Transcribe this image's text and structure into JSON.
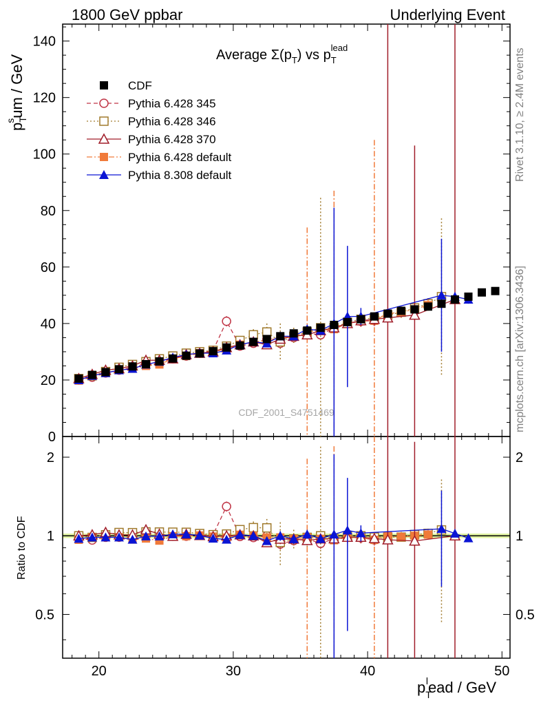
{
  "header": {
    "left": "1800 GeV ppbar",
    "right": "Underlying Event"
  },
  "side_texts": {
    "rivet": "Rivet 3.1.10, ≥ 2.4M events",
    "mcplots": "mcplots.cern.ch [arXiv:1306.3436]"
  },
  "watermark": "CDF_2001_S4751469",
  "chart_data": {
    "type": "scatter",
    "title": {
      "main": "Average Σ(p",
      "sub1": "T",
      "mid": ") vs p",
      "sub2": "T",
      "sup2": "lead"
    },
    "xlabel": {
      "p": "p",
      "sub": "T",
      "sup": "l",
      "rest": "ead / GeV"
    },
    "ylabel": {
      "p": "p",
      "sub": "T",
      "sup": "s",
      "rest": "um / GeV"
    },
    "ratio_ylabel": "Ratio to CDF",
    "xlim": [
      17.3,
      50.6
    ],
    "ylim": [
      0,
      146
    ],
    "ratio_ylim": [
      0.34,
      2.4
    ],
    "xticks": [
      20,
      30,
      40,
      50
    ],
    "xticklabels": [
      "20",
      "30",
      "40",
      "50"
    ],
    "yticks": [
      0,
      20,
      40,
      60,
      80,
      100,
      120,
      140
    ],
    "yticklabels": [
      "0",
      "20",
      "40",
      "60",
      "80",
      "100",
      "120",
      "140"
    ],
    "ratio_yticks": [
      0.5,
      1,
      2
    ],
    "ratio_yticklabels": [
      "0.5",
      "1",
      "2"
    ],
    "grid": false,
    "legend_position": "top-left",
    "series": [
      {
        "name": "CDF",
        "style": "data",
        "color": "#000000",
        "marker": "square-filled",
        "x": [
          18.5,
          19.5,
          20.5,
          21.5,
          22.5,
          23.5,
          24.5,
          25.5,
          26.5,
          27.5,
          28.5,
          29.5,
          30.5,
          31.5,
          32.5,
          33.5,
          34.5,
          35.5,
          36.5,
          37.5,
          38.5,
          39.5,
          40.5,
          41.5,
          42.5,
          43.5,
          44.5,
          45.5,
          46.5,
          47.5,
          48.5,
          49.5
        ],
        "y": [
          20.5,
          21.8,
          22.8,
          23.8,
          24.8,
          25.6,
          26.6,
          27.6,
          28.6,
          29.4,
          30.2,
          31.5,
          32.2,
          33.5,
          34.5,
          35.5,
          36.5,
          37.5,
          38.5,
          39.5,
          40.5,
          41.5,
          42.5,
          43.5,
          44.5,
          45.0,
          46.0,
          47.0,
          48.5,
          49.5,
          51.0,
          51.5
        ]
      },
      {
        "name": "Pythia 6.428 345",
        "style": "dashed",
        "color": "#c03546",
        "marker": "circle-open",
        "x": [
          18.5,
          19.5,
          20.5,
          21.5,
          22.5,
          23.5,
          24.5,
          25.5,
          26.5,
          27.5,
          28.5,
          29.5,
          30.5,
          31.5,
          32.5,
          33.5,
          34.5,
          35.5,
          36.5,
          37.5,
          38.5,
          39.5,
          40.5
        ],
        "y": [
          20.0,
          21.0,
          22.5,
          23.5,
          24.5,
          25.5,
          26.5,
          27.5,
          28.5,
          29.5,
          30.5,
          40.8,
          32.0,
          33.0,
          34.5,
          33.0,
          35.0,
          36.5,
          36.0,
          38.5,
          40.0,
          40.8,
          41.0
        ],
        "err": [
          0.6,
          0.6,
          0.6,
          0.6,
          0.6,
          0.6,
          0.6,
          0.6,
          0.6,
          0.6,
          0.6,
          1.8,
          0.8,
          0.8,
          1.0,
          1.5,
          1.5,
          1.5,
          1.8,
          1.5,
          2,
          2,
          2
        ]
      },
      {
        "name": "Pythia 6.428 346",
        "style": "dotted",
        "color": "#a07a2c",
        "marker": "square-open",
        "x": [
          18.5,
          19.5,
          20.5,
          21.5,
          22.5,
          23.5,
          24.5,
          25.5,
          26.5,
          27.5,
          28.5,
          29.5,
          30.5,
          31.5,
          32.5,
          33.5,
          34.5,
          35.5,
          36.5,
          37.5,
          38.5,
          39.5,
          40.5,
          41.5,
          42.5,
          43.5,
          44.5,
          45.5
        ],
        "y": [
          20.5,
          21.5,
          23.0,
          24.5,
          25.5,
          26.5,
          27.5,
          28.5,
          29.5,
          30.0,
          30.5,
          32.0,
          34.0,
          36.0,
          37.0,
          33.5,
          35.5,
          37.0,
          38.5,
          38.5,
          40.5,
          41.5,
          42.0,
          43.0,
          44.0,
          45.5,
          47.0,
          49.5
        ],
        "err": [
          0.6,
          0.6,
          0.6,
          0.6,
          0.6,
          0.6,
          0.6,
          0.6,
          0.6,
          0.6,
          0.6,
          0.8,
          1.0,
          2.0,
          3.0,
          6.5,
          3.0,
          3.0,
          46.0,
          2.0,
          2.0,
          2.0,
          2.0,
          2.0,
          2.0,
          2.0,
          2.0,
          27.7
        ]
      },
      {
        "name": "Pythia 6.428 370",
        "style": "solid",
        "color": "#a01c28",
        "marker": "triangle-open",
        "x": [
          18.5,
          19.5,
          20.5,
          21.5,
          22.5,
          23.5,
          24.5,
          25.5,
          26.5,
          27.5,
          28.5,
          29.5,
          30.5,
          31.5,
          32.5,
          33.5,
          34.5,
          35.5,
          36.5,
          37.5,
          38.5,
          39.5,
          40.5,
          41.5,
          43.5,
          46.5
        ],
        "y": [
          20.5,
          22.0,
          23.5,
          24.0,
          25.0,
          27.0,
          27.0,
          27.5,
          29.0,
          29.5,
          30.0,
          31.5,
          32.5,
          33.5,
          32.5,
          34.5,
          35.5,
          36.0,
          37.5,
          38.5,
          40.0,
          41.0,
          41.5,
          42.0,
          43.0,
          48.5
        ],
        "err": [
          0.6,
          0.6,
          0.6,
          0.6,
          0.6,
          0.6,
          0.6,
          0.6,
          0.6,
          0.6,
          0.6,
          0.8,
          0.8,
          1.0,
          1.0,
          1.5,
          1.5,
          1.5,
          1.5,
          2.0,
          2.0,
          2.0,
          2.0,
          140,
          60,
          140
        ]
      },
      {
        "name": "Pythia 6.428 default",
        "style": "dashdot",
        "color": "#f07a3a",
        "marker": "square-filled",
        "x": [
          18.5,
          19.5,
          20.5,
          21.5,
          22.5,
          23.5,
          24.5,
          25.5,
          26.5,
          27.5,
          28.5,
          29.5,
          30.5,
          31.5,
          32.5,
          33.5,
          34.5,
          35.5,
          36.5,
          37.5,
          38.5,
          39.5,
          40.5,
          41.5,
          42.5,
          43.5,
          44.5
        ],
        "y": [
          19.8,
          21.5,
          22.5,
          23.5,
          24.0,
          25.0,
          25.5,
          27.5,
          28.5,
          29.5,
          30.0,
          31.0,
          32.5,
          33.5,
          34.0,
          35.0,
          35.5,
          37.0,
          37.5,
          38.0,
          40.0,
          40.8,
          41.0,
          43.5,
          44.0,
          45.0,
          46.5
        ],
        "err": [
          0.6,
          0.6,
          0.6,
          0.6,
          0.6,
          0.6,
          0.6,
          0.6,
          0.6,
          0.6,
          0.6,
          0.8,
          0.8,
          1.0,
          1.0,
          1.5,
          1.5,
          37.0,
          1.5,
          49.0,
          2.0,
          2.0,
          64.0,
          2.0,
          2.0,
          2.0,
          2.0
        ]
      },
      {
        "name": "Pythia 8.308 default",
        "style": "solid",
        "color": "#0a14d4",
        "marker": "triangle-filled",
        "x": [
          18.5,
          19.5,
          20.5,
          21.5,
          22.5,
          23.5,
          24.5,
          25.5,
          26.5,
          27.5,
          28.5,
          29.5,
          30.5,
          31.5,
          32.5,
          33.5,
          34.5,
          35.5,
          36.5,
          37.5,
          38.5,
          39.5,
          45.5,
          46.5,
          47.5
        ],
        "y": [
          20.0,
          21.5,
          22.5,
          23.5,
          24.0,
          25.5,
          26.5,
          28.0,
          29.0,
          29.5,
          29.5,
          30.5,
          32.5,
          33.5,
          33.0,
          35.5,
          35.5,
          38.0,
          37.5,
          40.0,
          42.5,
          42.5,
          50.0,
          49.5,
          48.5
        ],
        "err": [
          0.6,
          0.6,
          0.6,
          0.6,
          0.6,
          0.6,
          0.6,
          0.6,
          0.6,
          0.6,
          0.6,
          0.8,
          0.8,
          1.0,
          1.0,
          1.5,
          1.5,
          1.5,
          1.5,
          41.0,
          25.0,
          3.0,
          20.0,
          1.5,
          1.5
        ]
      }
    ]
  }
}
